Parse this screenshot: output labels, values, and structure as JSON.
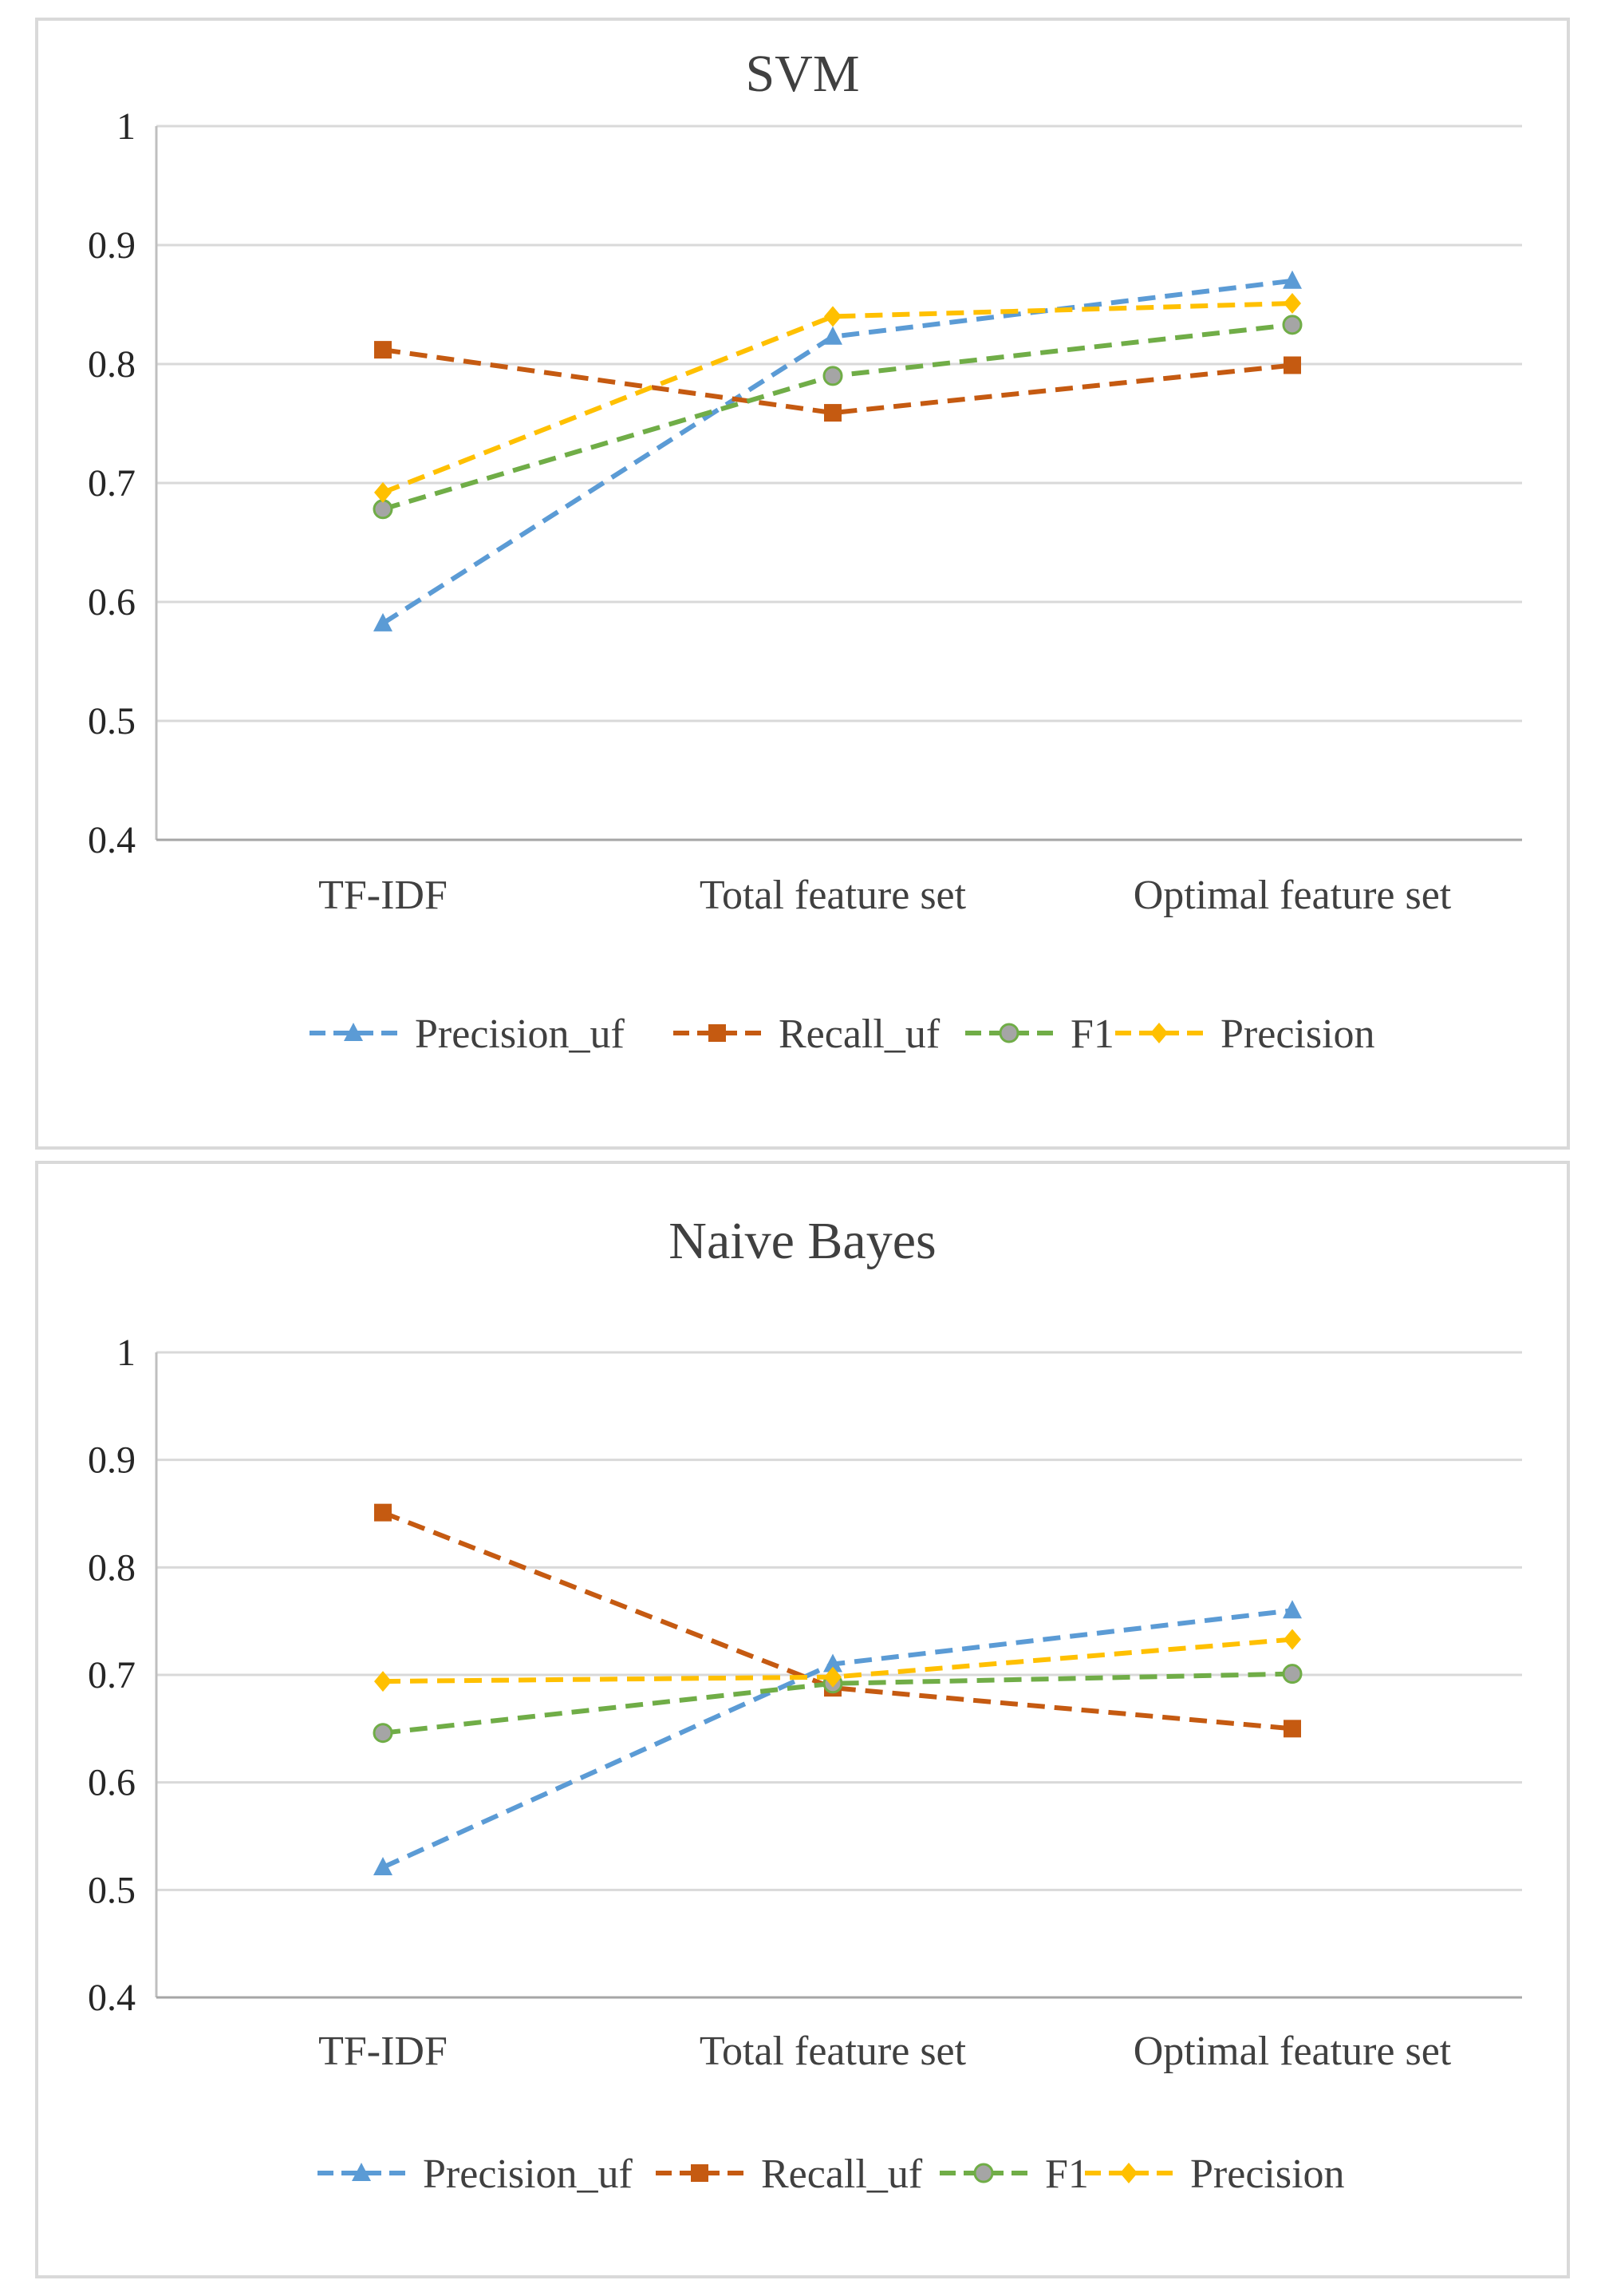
{
  "chart_data": [
    {
      "type": "line",
      "title": "SVM",
      "categories": [
        "TF-IDF",
        "Total feature set",
        "Optimal feature set"
      ],
      "ylim": [
        0.4,
        1
      ],
      "yticks": [
        "0.4",
        "0.5",
        "0.6",
        "0.7",
        "0.8",
        "0.9",
        "1"
      ],
      "grid": true,
      "legend": "bottom",
      "series": [
        {
          "name": "Precision_uf",
          "color": "#5b9bd5",
          "marker": "triangle",
          "values": [
            0.582,
            0.823,
            0.87
          ]
        },
        {
          "name": "Recall_uf",
          "color": "#c55a11",
          "marker": "square",
          "values": [
            0.812,
            0.759,
            0.799
          ]
        },
        {
          "name": "F1",
          "color": "#70ad47",
          "marker": "circle",
          "values": [
            0.678,
            0.79,
            0.833
          ]
        },
        {
          "name": "Precision",
          "color": "#ffc000",
          "marker": "diamond",
          "values": [
            0.692,
            0.84,
            0.851
          ]
        }
      ]
    },
    {
      "type": "line",
      "title": "Naive Bayes",
      "categories": [
        "TF-IDF",
        "Total feature set",
        "Optimal feature set"
      ],
      "ylim": [
        0.4,
        1
      ],
      "yticks": [
        "0.4",
        "0.5",
        "0.6",
        "0.7",
        "0.8",
        "0.9",
        "1"
      ],
      "grid": true,
      "legend": "bottom",
      "series": [
        {
          "name": "Precision_uf",
          "color": "#5b9bd5",
          "marker": "triangle",
          "values": [
            0.521,
            0.71,
            0.76
          ]
        },
        {
          "name": "Recall_uf",
          "color": "#c55a11",
          "marker": "square",
          "values": [
            0.851,
            0.688,
            0.65
          ]
        },
        {
          "name": "F1",
          "color": "#70ad47",
          "marker": "circle",
          "values": [
            0.646,
            0.692,
            0.701
          ]
        },
        {
          "name": "Precision",
          "color": "#ffc000",
          "marker": "diamond",
          "values": [
            0.694,
            0.698,
            0.733
          ]
        }
      ]
    }
  ]
}
